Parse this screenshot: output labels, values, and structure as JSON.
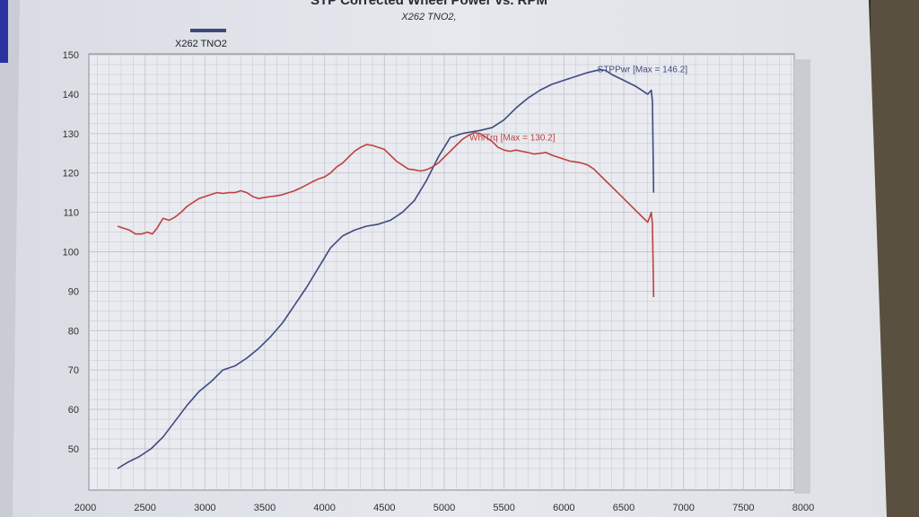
{
  "chart_data": {
    "type": "line",
    "title": "STP Corrected Wheel Power vs. RPM",
    "subtitle": "X262 TNO2,",
    "xlabel": "",
    "ylabel": "",
    "xlim": [
      2000,
      8000
    ],
    "ylim": [
      45,
      150
    ],
    "x_ticks": [
      "2000",
      "2500",
      "3000",
      "3500",
      "4000",
      "4500",
      "5000",
      "5500",
      "6000",
      "6500",
      "7000",
      "7500",
      "8000"
    ],
    "y_ticks": [
      "150",
      "140",
      "130",
      "120",
      "110",
      "100",
      "90",
      "80",
      "70",
      "60",
      "50"
    ],
    "legend": [
      {
        "label": "X262 TNO2",
        "color": "#3a4a7a"
      }
    ],
    "legend_position": "top-left",
    "grid": true,
    "series": [
      {
        "name": "STPPwr",
        "color": "#3d4b80",
        "x": [
          2270,
          2350,
          2450,
          2550,
          2650,
          2750,
          2850,
          2950,
          3050,
          3150,
          3250,
          3350,
          3450,
          3550,
          3650,
          3750,
          3850,
          3950,
          4050,
          4150,
          4250,
          4350,
          4450,
          4550,
          4650,
          4750,
          4850,
          4950,
          5050,
          5150,
          5200,
          5300,
          5400,
          5500,
          5600,
          5700,
          5800,
          5900,
          6000,
          6100,
          6200,
          6300,
          6350,
          6400,
          6500,
          6600,
          6700,
          6730,
          6740,
          6750
        ],
        "values": [
          45,
          46.5,
          48,
          50,
          53,
          57,
          61,
          64.5,
          67,
          70,
          71,
          73,
          75.5,
          78.5,
          82,
          86.5,
          91,
          96,
          101,
          104,
          105.5,
          106.5,
          107,
          108,
          110,
          113,
          118,
          124,
          129,
          130,
          130.3,
          130.8,
          131.5,
          133.5,
          136.5,
          139,
          141,
          142.5,
          143.5,
          144.5,
          145.5,
          146.2,
          146,
          145,
          143.5,
          142,
          140,
          141,
          138,
          115
        ]
      },
      {
        "name": "WhlTrq",
        "color": "#c04040",
        "x": [
          2270,
          2320,
          2370,
          2420,
          2470,
          2520,
          2560,
          2600,
          2650,
          2700,
          2750,
          2800,
          2850,
          2900,
          2950,
          3000,
          3050,
          3100,
          3150,
          3200,
          3250,
          3300,
          3350,
          3400,
          3450,
          3500,
          3550,
          3600,
          3650,
          3700,
          3750,
          3800,
          3850,
          3900,
          3950,
          4000,
          4050,
          4100,
          4150,
          4200,
          4250,
          4300,
          4350,
          4400,
          4450,
          4500,
          4550,
          4600,
          4650,
          4700,
          4750,
          4800,
          4850,
          4900,
          4950,
          5000,
          5050,
          5100,
          5150,
          5200,
          5250,
          5300,
          5350,
          5400,
          5450,
          5500,
          5550,
          5600,
          5650,
          5700,
          5750,
          5800,
          5850,
          5900,
          5950,
          6000,
          6050,
          6100,
          6150,
          6200,
          6250,
          6300,
          6350,
          6400,
          6450,
          6500,
          6550,
          6600,
          6650,
          6700,
          6720,
          6730,
          6740,
          6750
        ],
        "values": [
          106.5,
          106,
          105.5,
          104.5,
          104.5,
          105,
          104.5,
          106,
          108.5,
          108,
          108.8,
          110,
          111.5,
          112.5,
          113.5,
          114,
          114.5,
          115,
          114.8,
          115,
          115,
          115.5,
          115,
          114,
          113.5,
          113.8,
          114,
          114.2,
          114.5,
          115,
          115.5,
          116.2,
          117,
          117.8,
          118.5,
          119,
          120,
          121.5,
          122.5,
          124,
          125.5,
          126.5,
          127.2,
          127,
          126.5,
          126,
          124.5,
          123,
          122,
          121,
          120.8,
          120.5,
          120.8,
          121.5,
          122.5,
          124,
          125.5,
          127,
          128.5,
          129.5,
          130.2,
          130,
          129,
          128,
          126.5,
          125.8,
          125.5,
          125.8,
          125.5,
          125.2,
          124.8,
          125,
          125.2,
          124.5,
          124,
          123.5,
          123,
          122.8,
          122.5,
          122,
          121,
          119.5,
          118,
          116.5,
          115,
          113.5,
          112,
          110.5,
          109,
          107.5,
          109,
          110,
          107,
          88.5
        ]
      }
    ],
    "annotations": [
      {
        "text": "STPPwr [Max = 146.2]",
        "x": 6280,
        "y": 145.6,
        "series": 0
      },
      {
        "text": "WhlTrq [Max = 130.2]",
        "x": 5210,
        "y": 128.2,
        "series": 1
      }
    ]
  }
}
